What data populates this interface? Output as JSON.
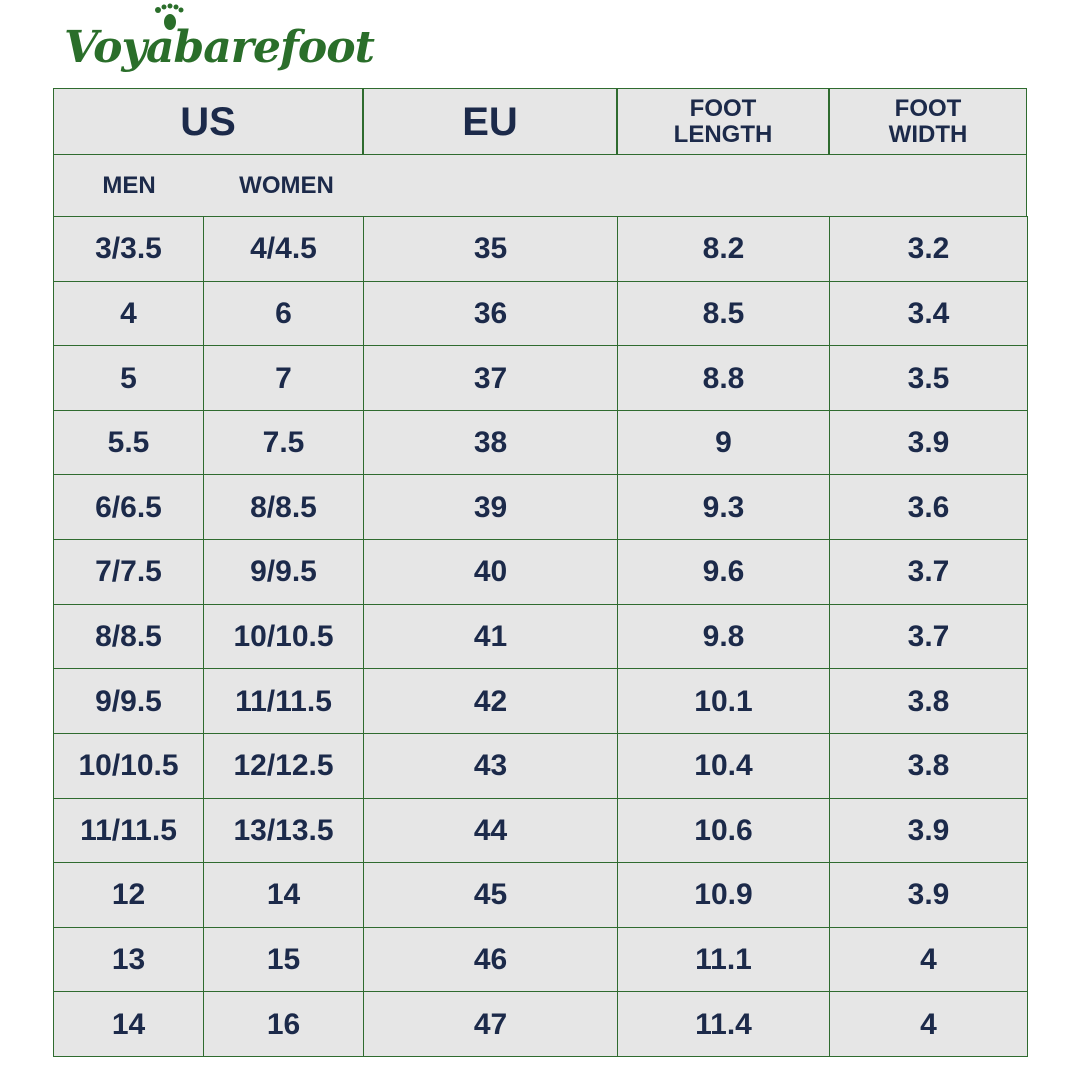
{
  "logo": "Voyabarefoot",
  "table": {
    "header": [
      "US",
      "EU",
      "FOOT LENGTH",
      "FOOT WIDTH"
    ],
    "subheader": [
      "MEN",
      "WOMEN"
    ],
    "rows": [
      [
        "3/3.5",
        "4/4.5",
        "35",
        "8.2",
        "3.2"
      ],
      [
        "4",
        "6",
        "36",
        "8.5",
        "3.4"
      ],
      [
        "5",
        "7",
        "37",
        "8.8",
        "3.5"
      ],
      [
        "5.5",
        "7.5",
        "38",
        "9",
        "3.9"
      ],
      [
        "6/6.5",
        "8/8.5",
        "39",
        "9.3",
        "3.6"
      ],
      [
        "7/7.5",
        "9/9.5",
        "40",
        "9.6",
        "3.7"
      ],
      [
        "8/8.5",
        "10/10.5",
        "41",
        "9.8",
        "3.7"
      ],
      [
        "9/9.5",
        "11/11.5",
        "42",
        "10.1",
        "3.8"
      ],
      [
        "10/10.5",
        "12/12.5",
        "43",
        "10.4",
        "3.8"
      ],
      [
        "11/11.5",
        "13/13.5",
        "44",
        "10.6",
        "3.9"
      ],
      [
        "12",
        "14",
        "45",
        "10.9",
        "3.9"
      ],
      [
        "13",
        "15",
        "46",
        "11.1",
        "4"
      ],
      [
        "14",
        "16",
        "47",
        "11.4",
        "4"
      ]
    ]
  }
}
